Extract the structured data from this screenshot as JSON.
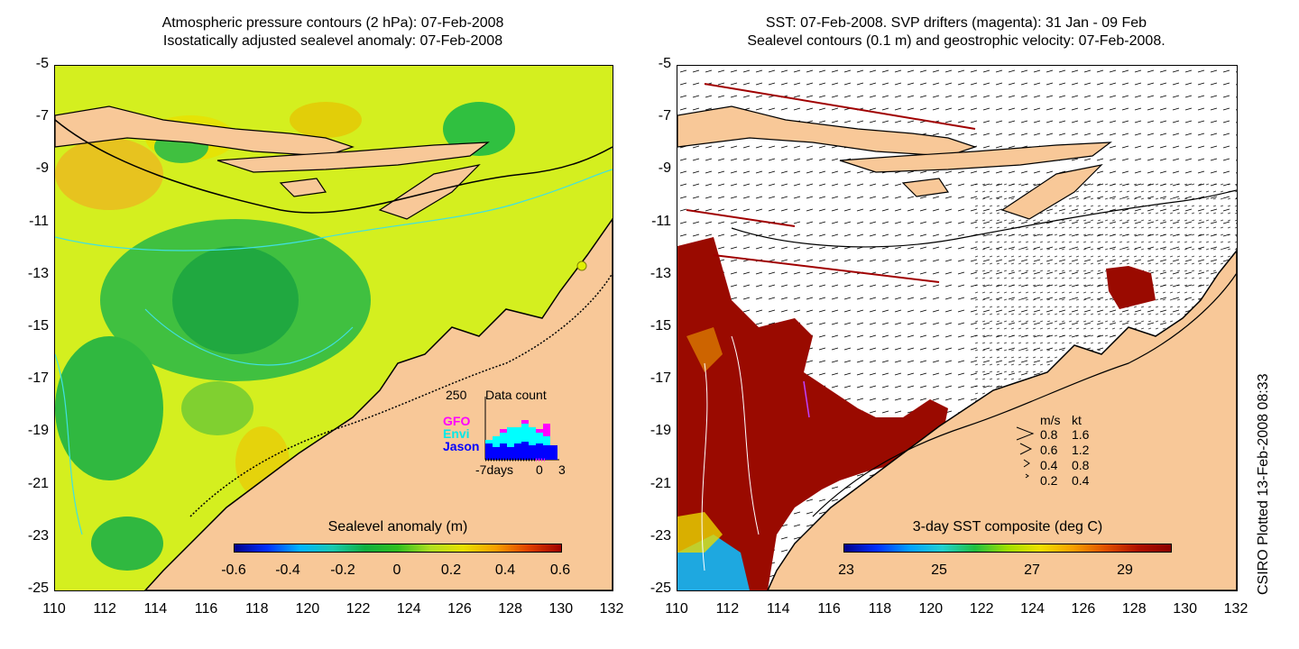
{
  "left": {
    "title_line1": "Atmospheric pressure contours (2 hPa): 07-Feb-2008",
    "title_line2": "Isostatically adjusted sealevel anomaly: 07-Feb-2008",
    "colorbar_title": "Sealevel anomaly (m)",
    "colorbar_ticks": [
      "-0.6",
      "-0.4",
      "-0.2",
      "0",
      "0.2",
      "0.4",
      "0.6"
    ],
    "inset": {
      "count_label": "250",
      "title": "Data count",
      "sat1": "GFO",
      "sat2": "Envi",
      "sat3": "Jason",
      "axis_left": "-7days",
      "axis_mid": "0",
      "axis_right": "3",
      "sat1_color": "#ff00ff",
      "sat2_color": "#00ffff",
      "sat3_color": "#0000ff"
    }
  },
  "right": {
    "title_line1": "SST: 07-Feb-2008. SVP drifters (magenta): 31 Jan - 09 Feb",
    "title_line2": "Sealevel contours (0.1 m) and geostrophic velocity: 07-Feb-2008.",
    "colorbar_title": "3-day SST composite (deg C)",
    "colorbar_ticks": [
      "23",
      "25",
      "27",
      "29"
    ],
    "velocity_legend": {
      "header_ms": "m/s",
      "header_kt": "kt",
      "rows": [
        {
          "ms": "0.8",
          "kt": "1.6"
        },
        {
          "ms": "0.6",
          "kt": "1.2"
        },
        {
          "ms": "0.4",
          "kt": "0.8"
        },
        {
          "ms": "0.2",
          "kt": "0.4"
        }
      ]
    }
  },
  "axes": {
    "y_ticks": [
      "-5",
      "-7",
      "-9",
      "-11",
      "-13",
      "-15",
      "-17",
      "-19",
      "-21",
      "-23",
      "-25"
    ],
    "x_ticks": [
      "110",
      "112",
      "114",
      "116",
      "118",
      "120",
      "122",
      "124",
      "126",
      "128",
      "130",
      "132"
    ]
  },
  "credit": "CSIRO Plotted 13-Feb-2008 08:33",
  "colors": {
    "land": "#f8c898",
    "sea_base": "#d4ef1f",
    "sst_warm": "#9a0a00"
  }
}
